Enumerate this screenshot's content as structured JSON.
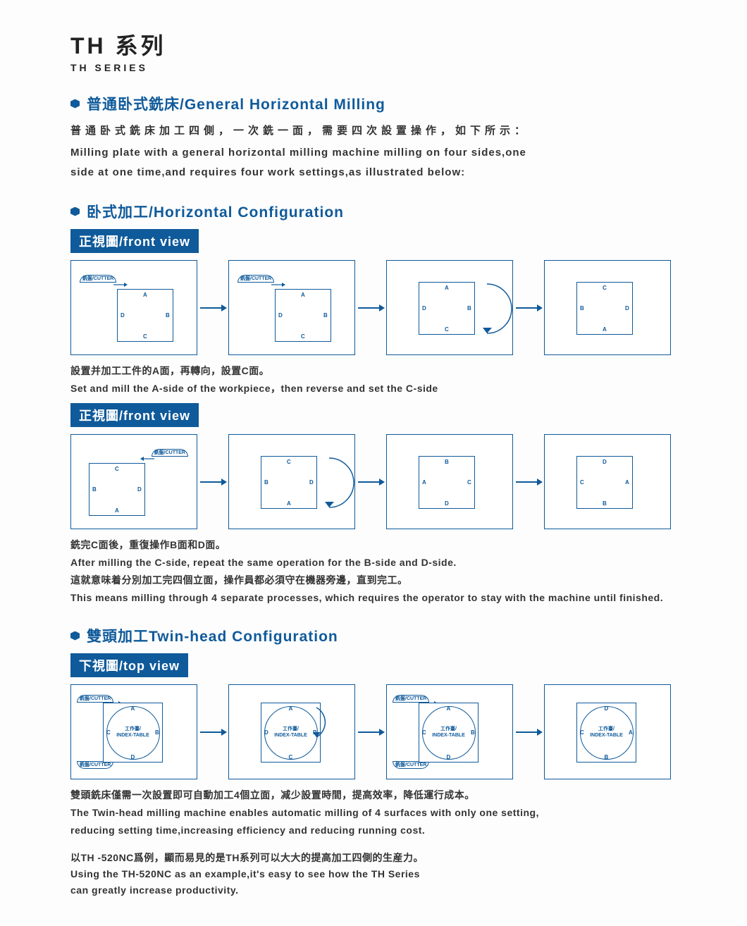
{
  "colors": {
    "brand": "#0f5a9a",
    "text": "#333333",
    "bg": "#fdfdfe",
    "panel_border": "#0f5a9a"
  },
  "header": {
    "title_cn": "TH 系列",
    "title_en": "TH SERIES"
  },
  "sec1": {
    "heading": "普通卧式銑床/General Horizontal Milling",
    "body_cn": "普通卧式銑床加工四側，一次銑一面，需要四次設置操作，如下所示：",
    "body_en1": "Milling plate with a general horizontal milling machine milling on four sides,one",
    "body_en2": "side at one time,and requires four work settings,as illustrated below:"
  },
  "sec2": {
    "heading": "卧式加工/Horizontal Configuration",
    "view_label": "正視圖/front view",
    "cutter_label": "銑盤/CUTTER",
    "row1": {
      "panels": [
        {
          "cutter_top_left": true,
          "faces": {
            "top": "A",
            "left": "D",
            "right": "B",
            "bottom": "C"
          }
        },
        {
          "cutter_top_left": true,
          "faces": {
            "top": "A",
            "left": "D",
            "right": "B",
            "bottom": "C"
          }
        },
        {
          "rotation_arc": true,
          "faces": {
            "top": "A",
            "left": "D",
            "right": "B",
            "bottom": "C"
          }
        },
        {
          "faces": {
            "top": "C",
            "left": "B",
            "right": "D",
            "bottom": "A"
          }
        }
      ],
      "caption_cn": "設置并加工工件的A面，再轉向，設置C面。",
      "caption_en": "Set and mill the A-side of the workpiece，then reverse and set the C-side"
    },
    "row2": {
      "panels": [
        {
          "cutter_top_right": true,
          "faces": {
            "top": "C",
            "left": "B",
            "right": "D",
            "bottom": "A"
          }
        },
        {
          "rotation_arc": true,
          "faces": {
            "top": "C",
            "left": "B",
            "right": "D",
            "bottom": "A"
          }
        },
        {
          "faces": {
            "top": "B",
            "left": "A",
            "right": "C",
            "bottom": "D"
          }
        },
        {
          "faces": {
            "top": "D",
            "left": "C",
            "right": "A",
            "bottom": "B"
          }
        }
      ],
      "caption_cn": "銑完C面後，重復操作B面和D面。",
      "caption_en1": "After milling the C-side, repeat the same operation for the B-side and D-side.",
      "caption_cn2": "這就意味着分別加工完四個立面，操作員都必須守在機器旁邊，直到完工。",
      "caption_en2": "This means milling through 4 separate processes, which requires the operator to stay with the machine until finished."
    }
  },
  "sec3": {
    "heading": "雙頭加工Twin-head Configuration",
    "view_label": "下視圖/top view",
    "index_label": "工作臺/\nINDEX-TABLE",
    "row": {
      "panels": [
        {
          "twin_cutters": true,
          "faces": {
            "top": "A",
            "left": "C",
            "right": "B",
            "bottom": "D"
          }
        },
        {
          "rotation_arc": true,
          "faces": {
            "top": "A",
            "left": "D",
            "right": "B",
            "bottom": "C"
          }
        },
        {
          "twin_cutters": true,
          "faces": {
            "top": "A",
            "left": "C",
            "right": "B",
            "bottom": "D"
          }
        },
        {
          "faces": {
            "top": "D",
            "left": "C",
            "right": "A",
            "bottom": "B"
          }
        }
      ]
    },
    "caption_cn": "雙頭銑床僅需一次設置即可自動加工4個立面，减少設置時間，提高效率，降低運行成本。",
    "caption_en1": "The Twin-head milling machine enables automatic milling of 4 surfaces with only one setting,",
    "caption_en2": "reducing setting time,increasing efficiency and reducing running cost.",
    "footer_cn": "以TH -520NC爲例，顯而易見的是TH系列可以大大的提高加工四側的生産力。",
    "footer_en1": "Using the TH-520NC as an example,it's easy to see how the TH Series",
    "footer_en2": "can greatly increase productivity."
  }
}
